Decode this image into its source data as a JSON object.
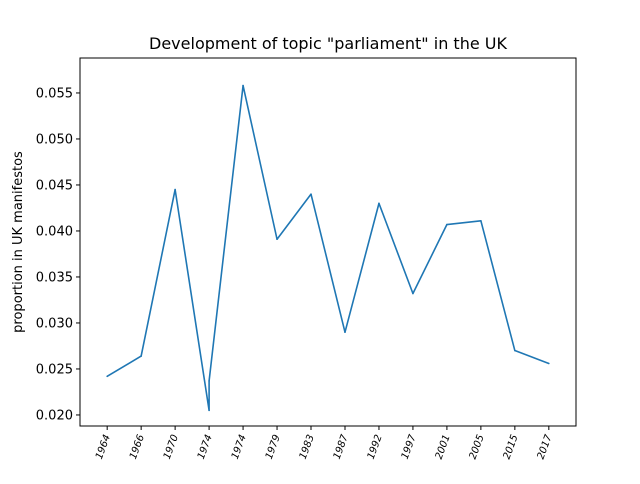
{
  "chart_data": {
    "type": "line",
    "title": "Development of topic \"parliament\" in the UK",
    "xlabel": "",
    "ylabel": "proportion in UK manifestos",
    "categories": [
      "1964",
      "1966",
      "1970",
      "1974",
      "1974",
      "1979",
      "1983",
      "1987",
      "1992",
      "1997",
      "2001",
      "2005",
      "2015",
      "2017"
    ],
    "x_positions": [
      0,
      1,
      2,
      3,
      4,
      5,
      6,
      7,
      8,
      9,
      10,
      11,
      12,
      13
    ],
    "series": [
      {
        "x": [
          0,
          1,
          2,
          3,
          3,
          4,
          5,
          6,
          7,
          8,
          9,
          10,
          11,
          12,
          13
        ],
        "values": [
          0.0242,
          0.0264,
          0.0445,
          0.0205,
          0.0237,
          0.0558,
          0.0391,
          0.044,
          0.029,
          0.043,
          0.0332,
          0.0407,
          0.0411,
          0.027,
          0.0256
        ],
        "color": "#1f77b4"
      }
    ],
    "yticks": [
      "0.020",
      "0.025",
      "0.030",
      "0.035",
      "0.040",
      "0.045",
      "0.050",
      "0.055"
    ],
    "ylim": [
      0.0188,
      0.0588
    ],
    "xlim": [
      -0.8,
      13.8
    ],
    "grid": false,
    "legend": "none"
  }
}
